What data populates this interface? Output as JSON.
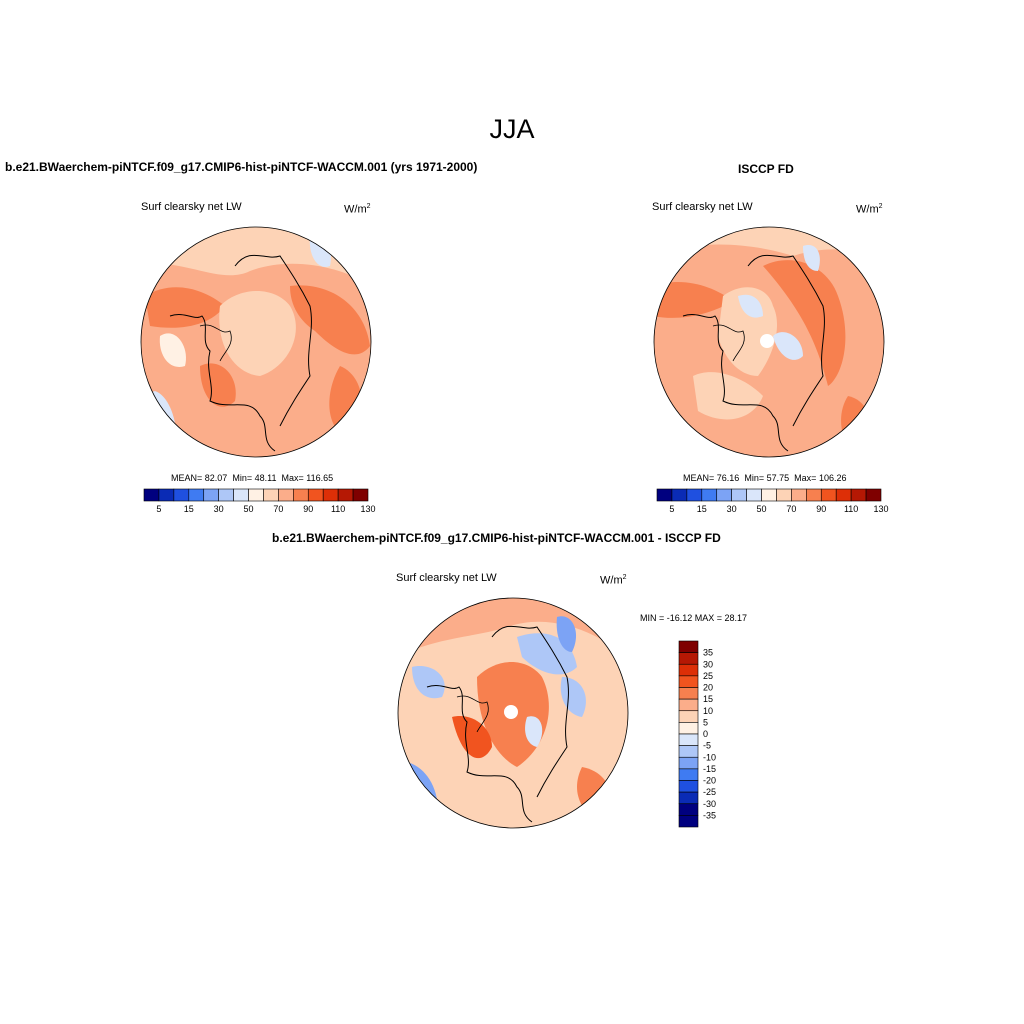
{
  "season": "JJA",
  "panels": {
    "model": {
      "title": "b.e21.BWaerchem-piNTCF.f09_g17.CMIP6-hist-piNTCF-WACCM.001 (yrs 1971-2000)",
      "variable": "Surf clearsky net LW",
      "units_base": "W/m",
      "units_exp": "2",
      "stats": {
        "mean_label": "MEAN=",
        "mean": "82.07",
        "min_label": "Min=",
        "min": "48.11",
        "max_label": "Max=",
        "max": "116.65"
      }
    },
    "obs": {
      "title": "ISCCP FD",
      "variable": "Surf clearsky net LW",
      "units_base": "W/m",
      "units_exp": "2",
      "stats": {
        "mean_label": "MEAN=",
        "mean": "76.16",
        "min_label": "Min=",
        "min": "57.75",
        "max_label": "Max=",
        "max": "106.26"
      }
    },
    "diff": {
      "title": "b.e21.BWaerchem-piNTCF.f09_g17.CMIP6-hist-piNTCF-WACCM.001 - ISCCP FD",
      "variable": "Surf clearsky net LW",
      "units_base": "W/m",
      "units_exp": "2",
      "minmax": "MIN = -16.12  MAX =  28.17"
    }
  },
  "chart_data": [
    {
      "type": "heatmap",
      "title": "Surf clearsky net LW (model)",
      "projection": "north polar stereographic",
      "colorbar": {
        "orientation": "horizontal",
        "tick_labels": [
          "5",
          "15",
          "30",
          "50",
          "70",
          "90",
          "110",
          "130"
        ],
        "colors": [
          "#00007f",
          "#0a2bb5",
          "#1f50e0",
          "#3f7bf2",
          "#7ca3f5",
          "#aec7f7",
          "#dae6fa",
          "#fff1e4",
          "#fdd3b6",
          "#fbad8a",
          "#f7804f",
          "#f1541f",
          "#dd2f07",
          "#b51804",
          "#7f0000"
        ]
      },
      "stats": {
        "mean": 82.07,
        "min": 48.11,
        "max": 116.65
      }
    },
    {
      "type": "heatmap",
      "title": "Surf clearsky net LW (ISCCP FD)",
      "projection": "north polar stereographic",
      "colorbar": {
        "orientation": "horizontal",
        "tick_labels": [
          "5",
          "15",
          "30",
          "50",
          "70",
          "90",
          "110",
          "130"
        ],
        "colors": [
          "#00007f",
          "#0a2bb5",
          "#1f50e0",
          "#3f7bf2",
          "#7ca3f5",
          "#aec7f7",
          "#dae6fa",
          "#fff1e4",
          "#fdd3b6",
          "#fbad8a",
          "#f7804f",
          "#f1541f",
          "#dd2f07",
          "#b51804",
          "#7f0000"
        ]
      },
      "stats": {
        "mean": 76.16,
        "min": 57.75,
        "max": 106.26
      }
    },
    {
      "type": "heatmap",
      "title": "Surf clearsky net LW (difference)",
      "projection": "north polar stereographic",
      "colorbar": {
        "orientation": "vertical",
        "tick_labels": [
          "35",
          "30",
          "25",
          "20",
          "15",
          "10",
          "5",
          "0",
          "-5",
          "-10",
          "-15",
          "-20",
          "-25",
          "-30",
          "-35"
        ],
        "colors": [
          "#7f0000",
          "#b51804",
          "#dd2f07",
          "#f1541f",
          "#f7804f",
          "#fbad8a",
          "#fdd3b6",
          "#fff1e4",
          "#dae6fa",
          "#aec7f7",
          "#7ca3f5",
          "#3f7bf2",
          "#1f50e0",
          "#0a2bb5",
          "#00007f",
          "#00007f"
        ]
      },
      "stats": {
        "min": -16.12,
        "max": 28.17
      }
    }
  ]
}
